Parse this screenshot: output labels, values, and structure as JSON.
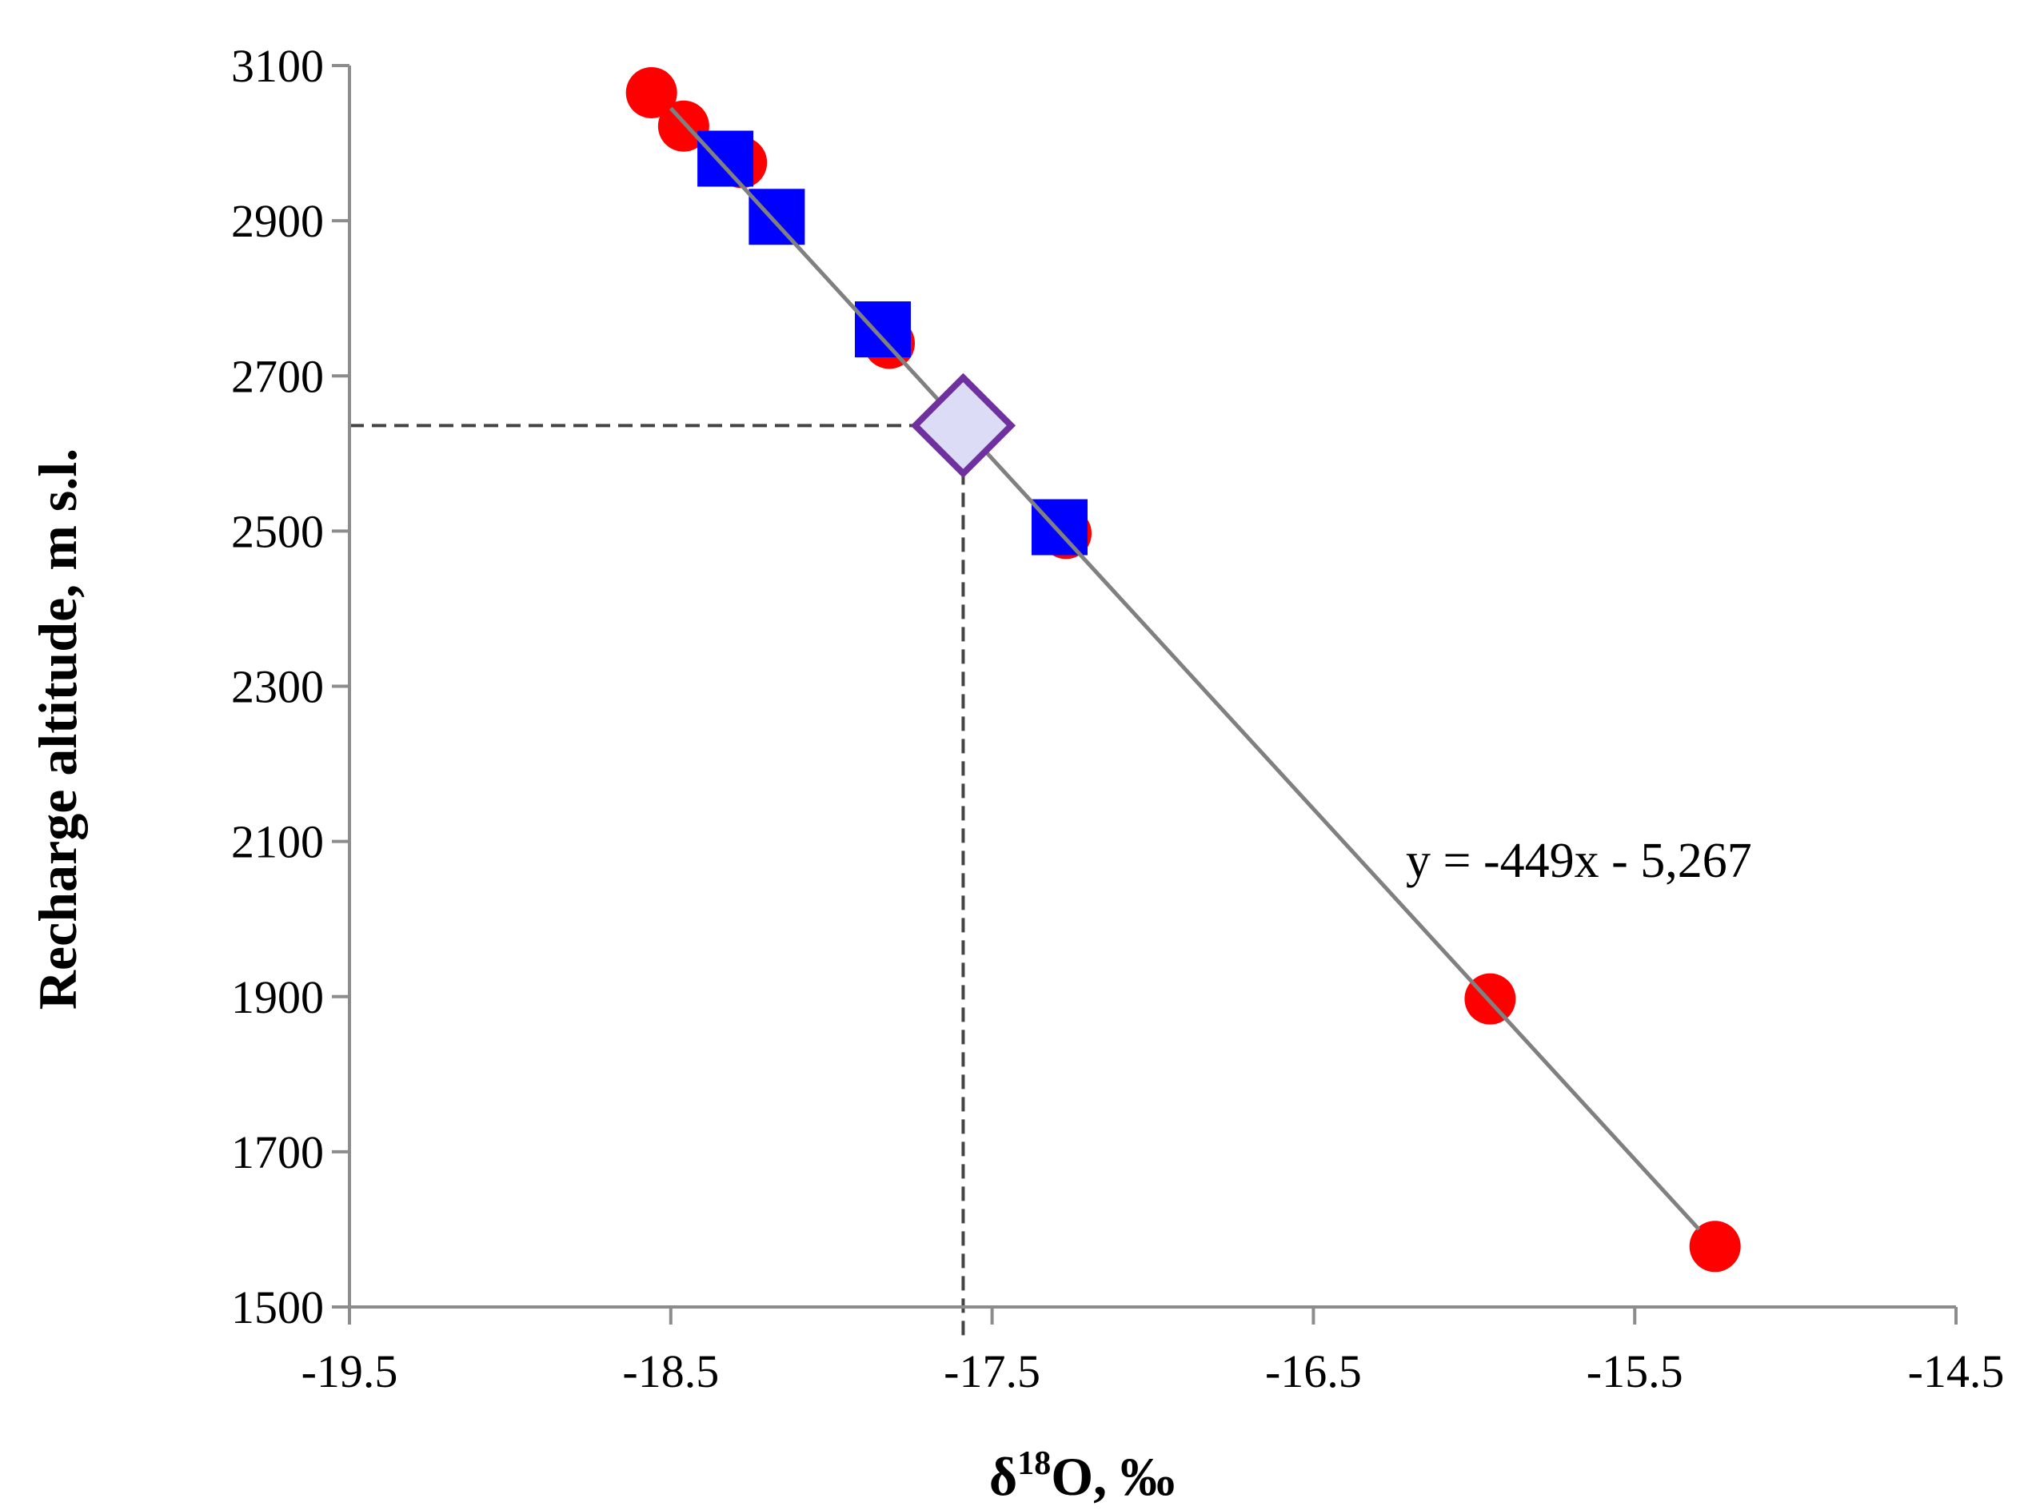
{
  "chart_data": {
    "type": "scatter",
    "xlabel_main": "δ",
    "xlabel_sup": "18",
    "xlabel_rest": "O, ‰",
    "ylabel": "Recharge altitude, m s.l.",
    "xlim": [
      -19.5,
      -14.5
    ],
    "ylim": [
      1500,
      3100
    ],
    "xticks": [
      "-19.5",
      "-18.5",
      "-17.5",
      "-16.5",
      "-15.5",
      "-14.5"
    ],
    "yticks": [
      "3100",
      "2900",
      "2700",
      "2500",
      "2300",
      "2100",
      "1900",
      "1700",
      "1500"
    ],
    "series": [
      {
        "name": "circles",
        "marker": "circle",
        "color": "#ff0000",
        "points": [
          {
            "x": -18.56,
            "y": 3065
          },
          {
            "x": -18.46,
            "y": 3022
          },
          {
            "x": -18.28,
            "y": 2975
          },
          {
            "x": -17.82,
            "y": 2742
          },
          {
            "x": -17.27,
            "y": 2497
          },
          {
            "x": -15.95,
            "y": 1897
          },
          {
            "x": -15.25,
            "y": 1578
          }
        ]
      },
      {
        "name": "squares",
        "marker": "square",
        "color": "#0000ff",
        "points": [
          {
            "x": -18.33,
            "y": 2980
          },
          {
            "x": -18.17,
            "y": 2905
          },
          {
            "x": -17.84,
            "y": 2760
          },
          {
            "x": -17.29,
            "y": 2505
          }
        ]
      },
      {
        "name": "diamond",
        "marker": "diamond",
        "color": "#7030a0",
        "fill": "#dcdcf6",
        "points": [
          {
            "x": -17.59,
            "y": 2636
          }
        ]
      }
    ],
    "trendline": {
      "x_start": -18.5,
      "y_start": 3045,
      "x_end": -15.3,
      "y_end": 1600,
      "color": "#808080",
      "equation": "y = -449x - 5,267"
    },
    "guide": {
      "x": -17.59,
      "y": 2636
    }
  }
}
